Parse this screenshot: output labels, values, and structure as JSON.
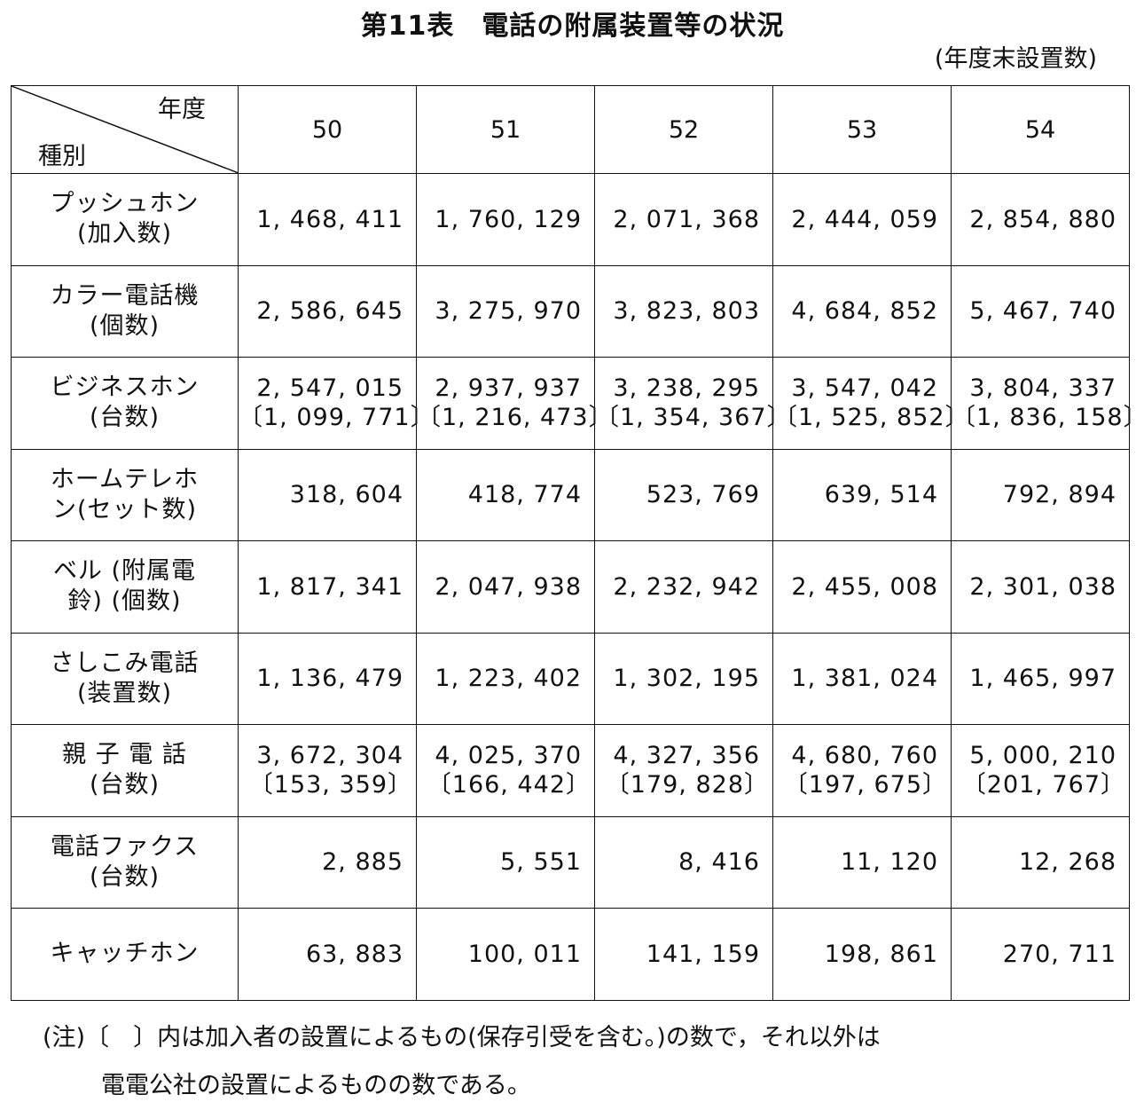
{
  "title": "第11表　電話の附属装置等の状況",
  "unit": "(年度末設置数)",
  "header": {
    "year_label": "年度",
    "kind_label": "種別",
    "years": [
      "50",
      "51",
      "52",
      "53",
      "54"
    ]
  },
  "rows": [
    {
      "label": "プッシュホン\n(加入数)",
      "values": [
        "1, 468, 411",
        "1, 760, 129",
        "2, 071, 368",
        "2, 444, 059",
        "2, 854, 880"
      ],
      "subs": [
        "",
        "",
        "",
        "",
        ""
      ]
    },
    {
      "label": "カラー電話機\n(個数)",
      "values": [
        "2, 586, 645",
        "3, 275, 970",
        "3, 823, 803",
        "4, 684, 852",
        "5, 467, 740"
      ],
      "subs": [
        "",
        "",
        "",
        "",
        ""
      ]
    },
    {
      "label": "ビジネスホン\n(台数)",
      "values": [
        "2, 547, 015",
        "2, 937, 937",
        "3, 238, 295",
        "3, 547, 042",
        "3, 804, 337"
      ],
      "subs": [
        "〔1, 099, 771〕",
        "〔1, 216, 473〕",
        "〔1, 354, 367〕",
        "〔1, 525, 852〕",
        "〔1, 836, 158〕"
      ]
    },
    {
      "label": "ホームテレホ\nン(セット数)",
      "values": [
        "318, 604",
        "418, 774",
        "523, 769",
        "639, 514",
        "792, 894"
      ],
      "subs": [
        "",
        "",
        "",
        "",
        ""
      ]
    },
    {
      "label": "ベル (附属電\n鈴) (個数)",
      "values": [
        "1, 817, 341",
        "2, 047, 938",
        "2, 232, 942",
        "2, 455, 008",
        "2, 301, 038"
      ],
      "subs": [
        "",
        "",
        "",
        "",
        ""
      ]
    },
    {
      "label": "さしこみ電話\n(装置数)",
      "values": [
        "1, 136, 479",
        "1, 223, 402",
        "1, 302, 195",
        "1, 381, 024",
        "1, 465, 997"
      ],
      "subs": [
        "",
        "",
        "",
        "",
        ""
      ]
    },
    {
      "label": "親 子 電 話\n(台数)",
      "values": [
        "3, 672, 304",
        "4, 025, 370",
        "4, 327, 356",
        "4, 680, 760",
        "5, 000, 210"
      ],
      "subs": [
        "〔153, 359〕",
        "〔166, 442〕",
        "〔179, 828〕",
        "〔197, 675〕",
        "〔201, 767〕"
      ]
    },
    {
      "label": "電話ファクス\n(台数)",
      "values": [
        "2, 885",
        "5, 551",
        "8, 416",
        "11, 120",
        "12, 268"
      ],
      "subs": [
        "",
        "",
        "",
        "",
        ""
      ]
    },
    {
      "label": "キャッチホン",
      "values": [
        "63, 883",
        "100, 011",
        "141, 159",
        "198, 861",
        "270, 711"
      ],
      "subs": [
        "",
        "",
        "",
        "",
        ""
      ]
    }
  ],
  "note": {
    "line1": "(注)〔　〕内は加入者の設置によるもの(保存引受を含む。)の数で，それ以外は",
    "line2": "電電公社の設置によるものの数である。"
  }
}
